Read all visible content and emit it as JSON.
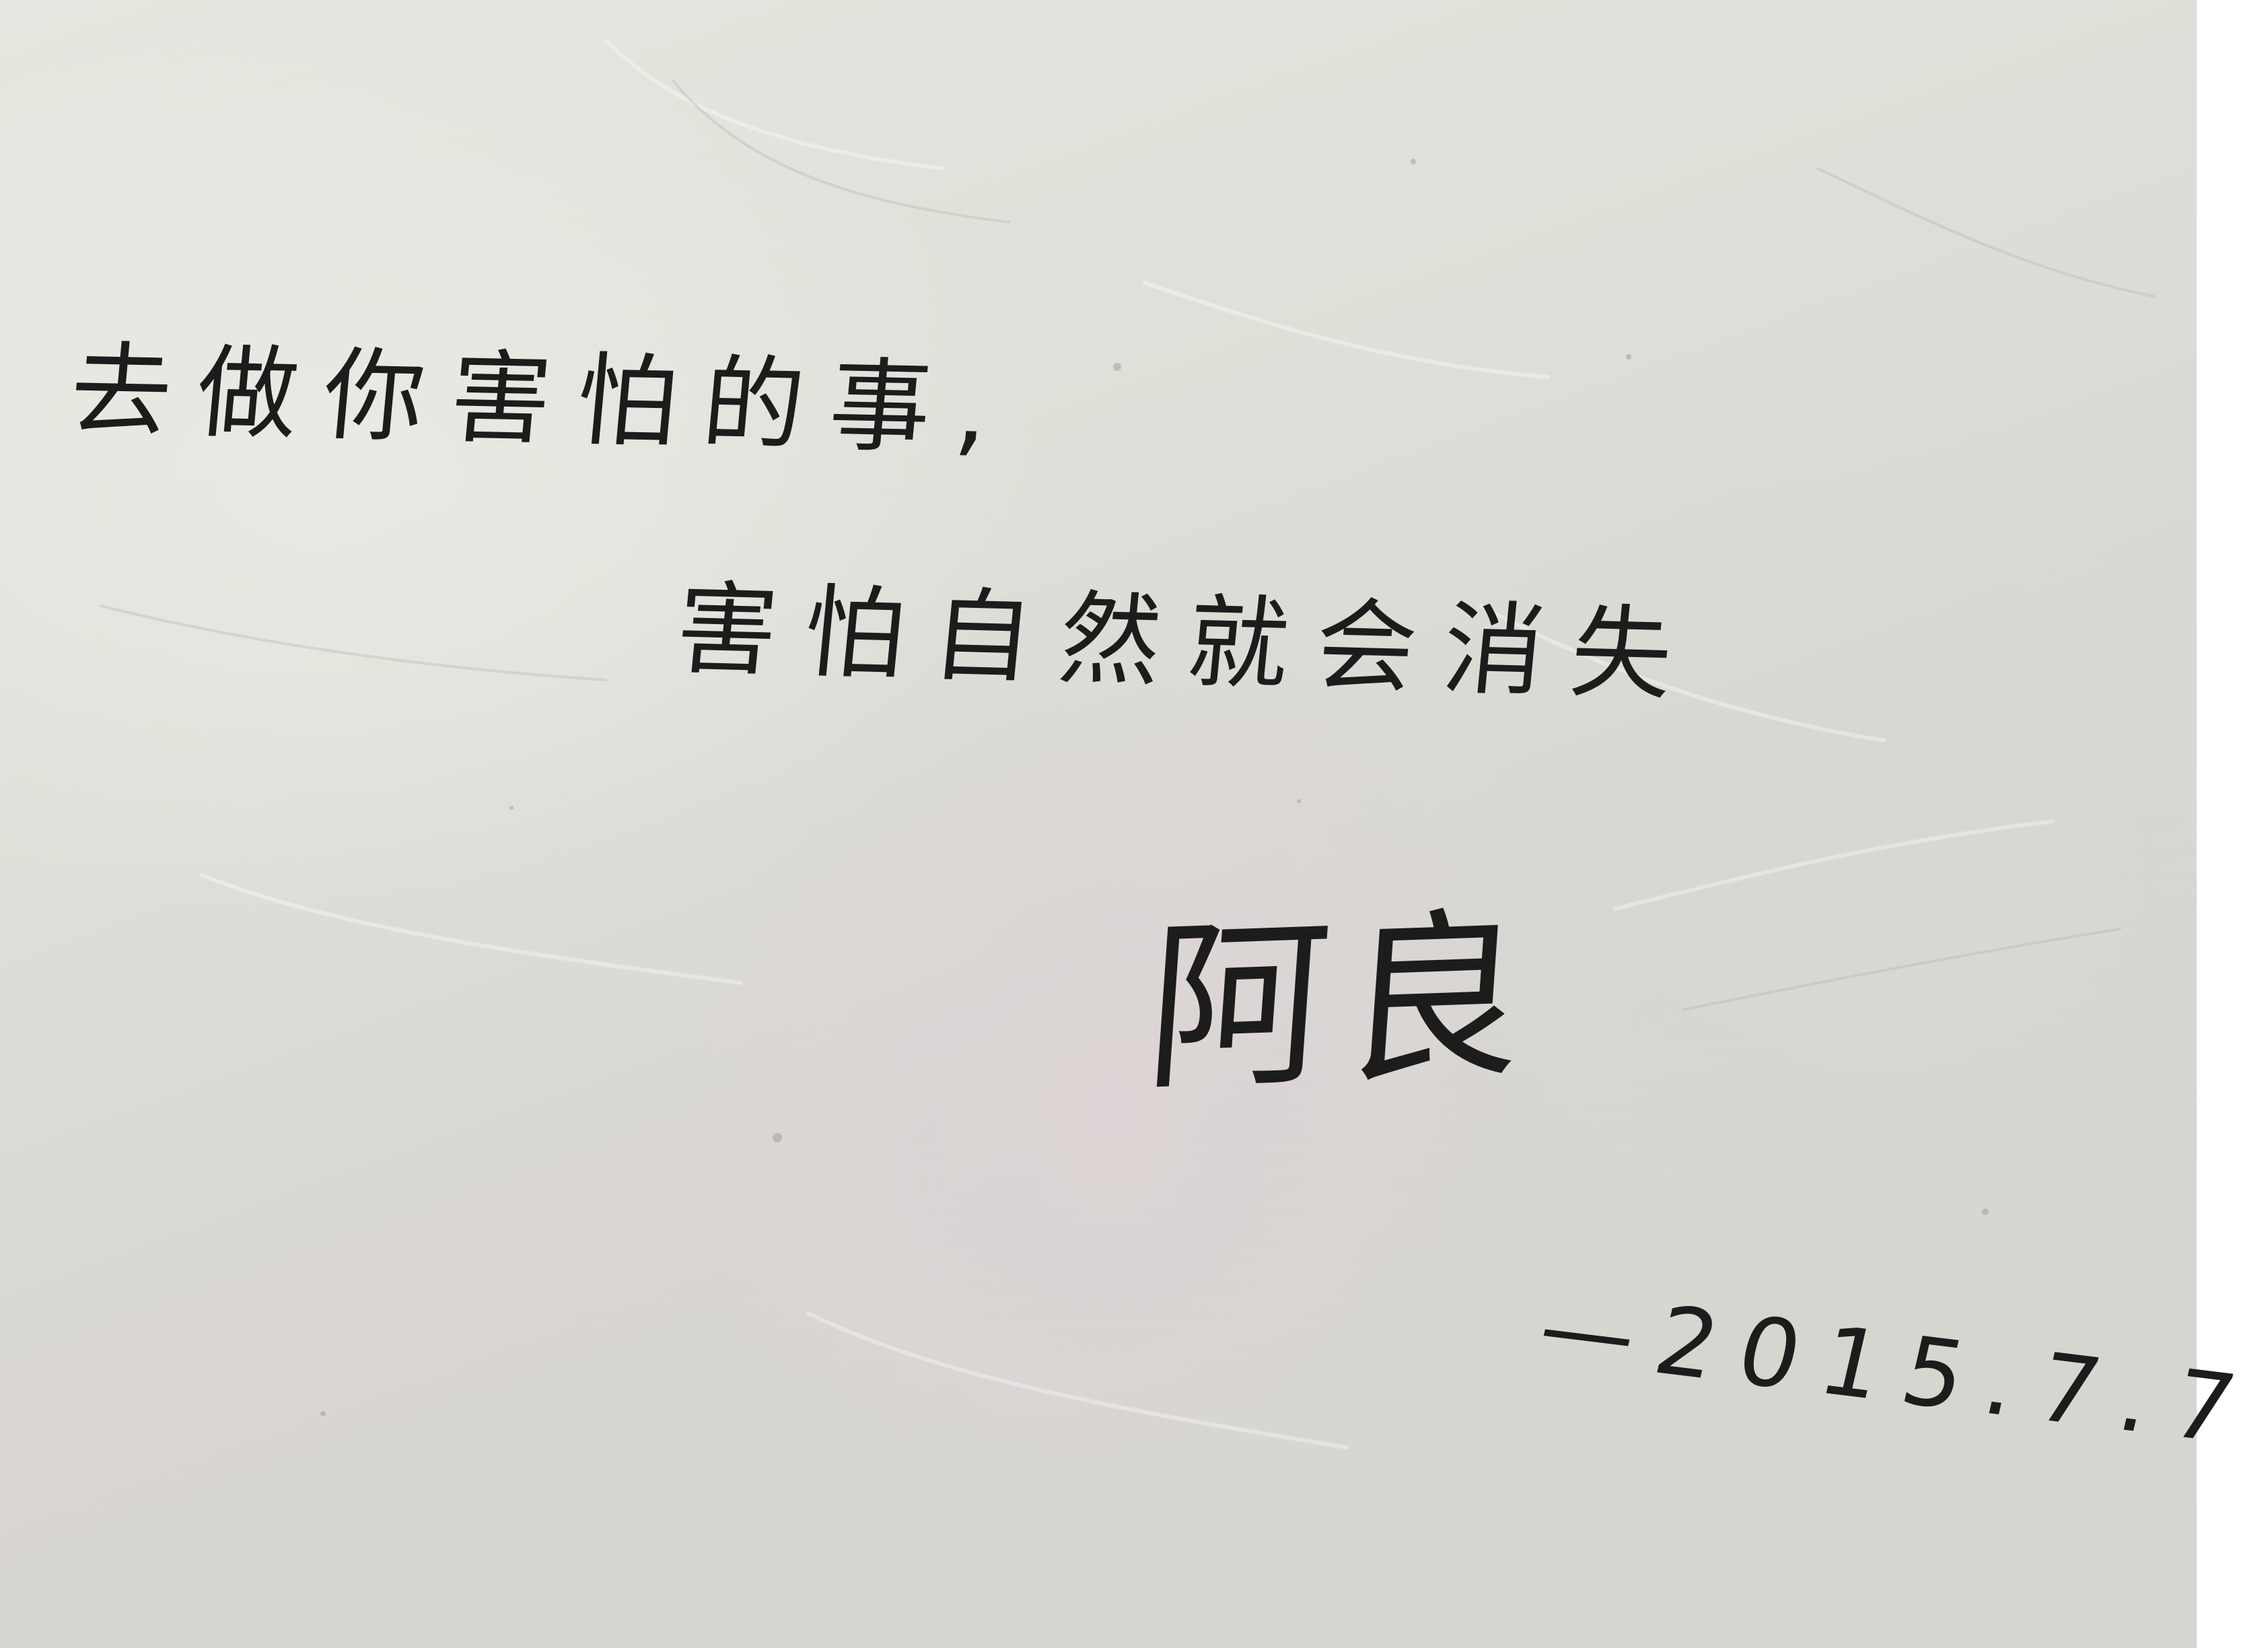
{
  "note": {
    "line1": "去做你害怕的事,",
    "line2": "害怕自然就会消失",
    "signature": "阿良",
    "date": "—2015.7.7"
  },
  "colors": {
    "wall": "#dedfd8",
    "ink": "#1c1c1c"
  }
}
